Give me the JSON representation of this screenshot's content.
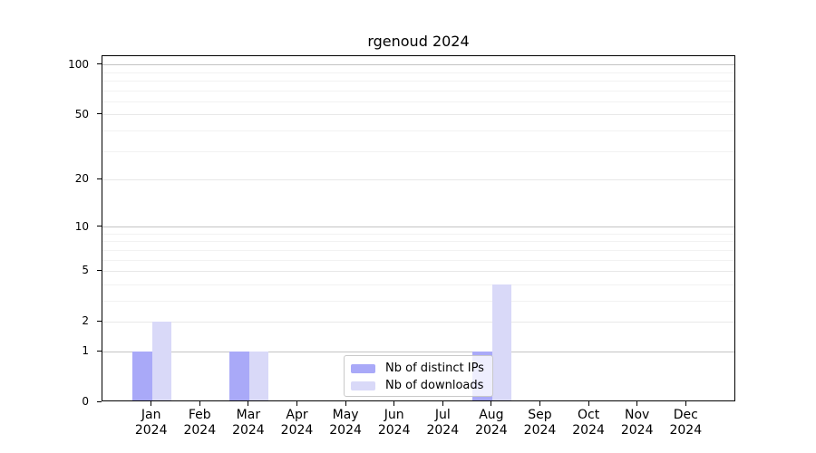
{
  "chart_data": {
    "type": "bar",
    "title": "rgenoud 2024",
    "categories": [
      "Jan",
      "Feb",
      "Mar",
      "Apr",
      "May",
      "Jun",
      "Jul",
      "Aug",
      "Sep",
      "Oct",
      "Nov",
      "Dec"
    ],
    "x_axis": {
      "year": "2024"
    },
    "y_axis": {
      "scale": "log1p",
      "min": 0,
      "max": 113,
      "ticks": [
        {
          "value": 100,
          "label": "100"
        },
        {
          "value": 50,
          "label": "50"
        },
        {
          "value": 20,
          "label": "20"
        },
        {
          "value": 10,
          "label": "10"
        },
        {
          "value": 5,
          "label": "5"
        },
        {
          "value": 2,
          "label": "2"
        },
        {
          "value": 1,
          "label": "1"
        },
        {
          "value": 0,
          "label": "0"
        }
      ],
      "gridlines": {
        "decade": [
          1,
          10,
          100
        ],
        "labeled": [
          2,
          5,
          20,
          50
        ],
        "minor": [
          3,
          4,
          6,
          7,
          8,
          9,
          30,
          40,
          60,
          70,
          80,
          90
        ]
      }
    },
    "series": [
      {
        "name": "Nb of distinct IPs",
        "color": "#a9a9f8",
        "values": [
          1,
          0,
          1,
          0,
          0,
          0,
          0,
          1,
          0,
          0,
          0,
          0
        ]
      },
      {
        "name": "Nb of downloads",
        "color": "#d9d9f8",
        "values": [
          2,
          0,
          1,
          0,
          0,
          0,
          0,
          4,
          0,
          0,
          0,
          0
        ]
      }
    ],
    "legend": {
      "position": "inside-bottom-center-right",
      "background": "rgba(255,255,255,0.8)",
      "border_color": "#c9c9c9"
    },
    "grid_colors": {
      "decade": "#c4c4c4",
      "labeled": "#e8e8e8",
      "minor": "#f2f2f2"
    }
  }
}
